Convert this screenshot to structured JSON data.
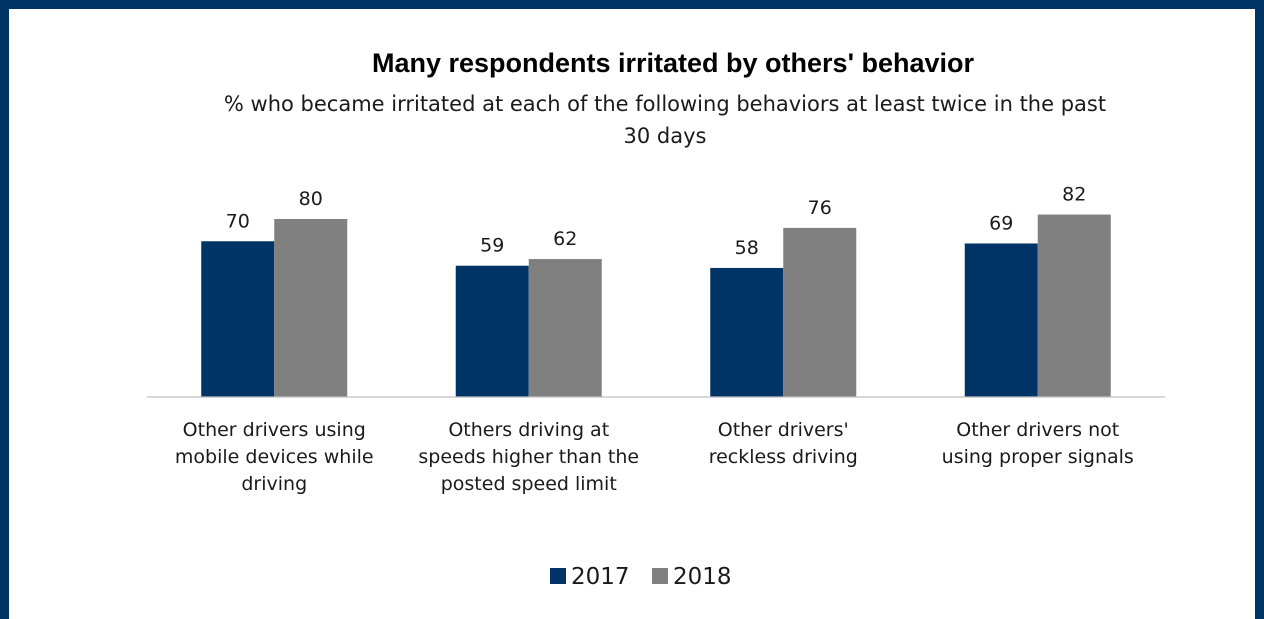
{
  "chart_data": {
    "type": "bar",
    "title": "Many respondents irritated by others' behavior",
    "subtitle": "% who became irritated at each of the following behaviors at least twice in the past 30 days",
    "categories": [
      "Other drivers using mobile devices while driving",
      "Others driving at speeds higher than the posted speed limit",
      "Other drivers' reckless driving",
      "Other drivers not using proper signals"
    ],
    "series": [
      {
        "name": "2017",
        "color": "#003366",
        "values": [
          70,
          59,
          58,
          69
        ]
      },
      {
        "name": "2018",
        "color": "#808080",
        "values": [
          80,
          62,
          76,
          82
        ]
      }
    ],
    "ylim": [
      0,
      100
    ],
    "xlabel": "",
    "ylabel": "",
    "grid": false,
    "legend": "bottom-center",
    "data_labels": true
  },
  "colors": {
    "frame_border": "#003366",
    "axis": "#bfbfbf"
  }
}
